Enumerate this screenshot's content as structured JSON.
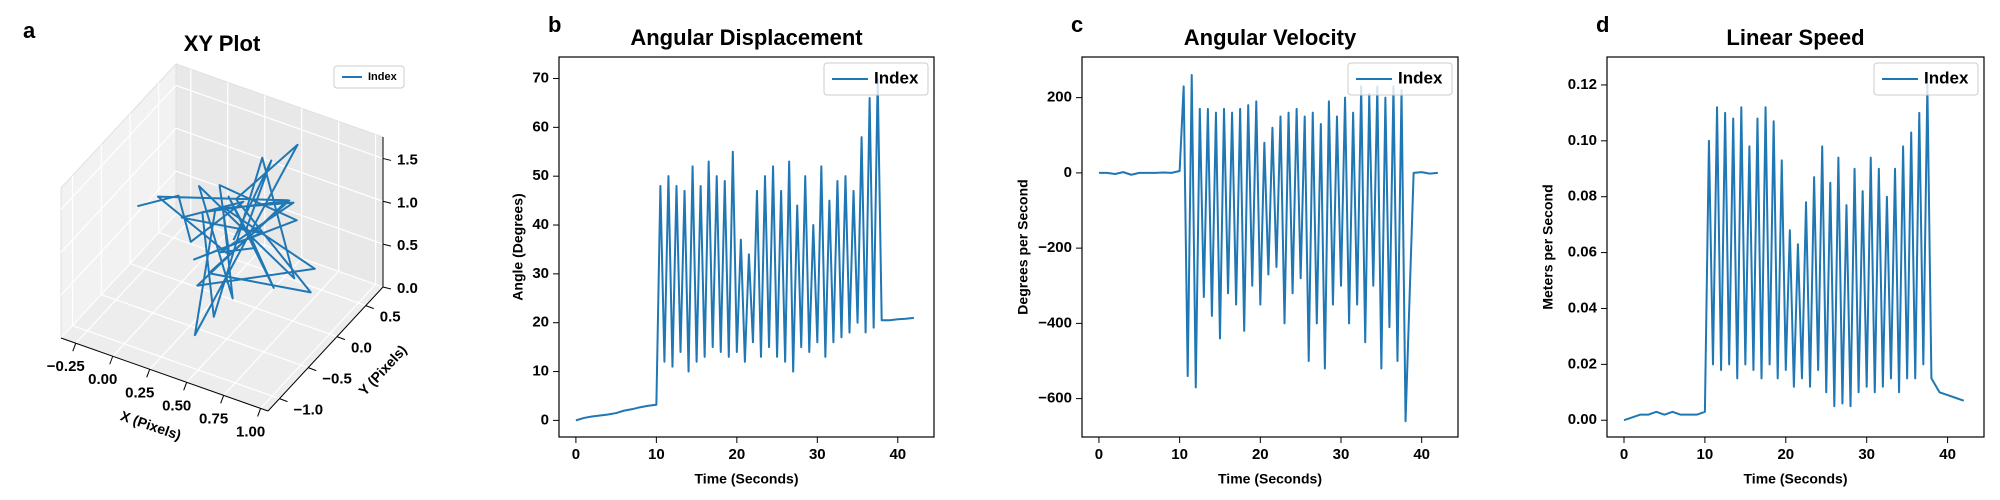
{
  "chart_data": [
    {
      "type": "line3d",
      "panel_label": "a",
      "title": "XY Plot",
      "xlabel": "X (Pixels)",
      "ylabel": "Y (Pixels)",
      "legend": "upper right",
      "xlim": [
        -0.35,
        1.05
      ],
      "ylim": [
        -1.2,
        0.8
      ],
      "zlim": [
        0,
        1.75
      ],
      "xticks": [
        {
          "value": -0.25,
          "label": "−0.25"
        },
        {
          "value": 0,
          "label": "0.00"
        },
        0.25,
        {
          "value": 0.5,
          "label": "0.50"
        },
        0.75,
        {
          "value": 1,
          "label": "1.00"
        }
      ],
      "yticks": [
        {
          "value": -1,
          "label": "−1.0"
        },
        {
          "value": -0.5,
          "label": "−0.5"
        },
        {
          "value": 0,
          "label": "0.0"
        },
        0.5
      ],
      "zticks": [
        {
          "value": 0,
          "label": "0.0"
        },
        0.5,
        {
          "value": 1,
          "label": "1.0"
        },
        1.5
      ],
      "series": [
        {
          "name": "Index",
          "color": "#1f77b4",
          "x": [
            -0.3,
            -0.1,
            0.1,
            0.3,
            0.0,
            0.5,
            0.2,
            0.7,
            0.1,
            0.4,
            -0.2,
            0.6,
            0.3,
            0.9,
            0.2,
            0.5,
            0.0,
            0.8,
            0.35,
            0.45,
            0.1,
            0.65,
            0.3,
            0.95,
            0.25,
            0.55,
            0.4,
            0.15,
            0.6,
            0.3,
            0.5,
            0.2,
            0.7,
            0.4,
            0.45,
            0.35
          ],
          "y": [
            0.0,
            0.2,
            -0.1,
            0.3,
            0.0,
            0.1,
            -0.3,
            0.2,
            0.4,
            -0.2,
            0.1,
            0.3,
            -0.5,
            0.0,
            0.2,
            -0.4,
            0.3,
            -0.1,
            0.5,
            -0.6,
            0.1,
            0.2,
            -0.3,
            -0.2,
            0.3,
            0.6,
            -0.8,
            0.2,
            0.4,
            -0.1,
            0.0,
            0.3,
            -0.2,
            0.1,
            0.4,
            0.0
          ],
          "z": [
            0.7,
            0.8,
            0.6,
            0.9,
            0.75,
            0.8,
            0.6,
            1.0,
            0.9,
            0.7,
            0.8,
            1.1,
            0.5,
            0.7,
            0.85,
            0.4,
            0.9,
            0.6,
            1.3,
            0.3,
            0.8,
            1.2,
            0.5,
            0.6,
            0.9,
            1.5,
            0.2,
            0.8,
            1.0,
            0.6,
            0.7,
            0.9,
            0.5,
            0.8,
            1.4,
            0.7
          ]
        }
      ]
    },
    {
      "type": "line",
      "panel_label": "b",
      "title": "Angular Displacement",
      "xlabel": "Time (Seconds)",
      "ylabel": "Angle (Degrees)",
      "legend": "upper right",
      "xlim": [
        -2.1,
        44.5
      ],
      "ylim": [
        -3.4,
        74.4
      ],
      "xticks": [
        0,
        10,
        20,
        30,
        40
      ],
      "yticks": [
        0,
        10,
        20,
        30,
        40,
        50,
        60,
        70
      ],
      "x": [
        0,
        1,
        2,
        3,
        4,
        5,
        6,
        7,
        8,
        9,
        10,
        10.5,
        11,
        11.5,
        12,
        12.5,
        13,
        13.5,
        14,
        14.5,
        15,
        15.5,
        16,
        16.5,
        17,
        17.5,
        18,
        18.5,
        19,
        19.5,
        20,
        20.5,
        21,
        21.5,
        22,
        22.5,
        23,
        23.5,
        24,
        24.5,
        25,
        25.5,
        26,
        26.5,
        27,
        27.5,
        28,
        28.5,
        29,
        29.5,
        30,
        30.5,
        31,
        31.5,
        32,
        32.5,
        33,
        33.5,
        34,
        34.5,
        35,
        35.5,
        36,
        36.5,
        37,
        37.5,
        38,
        39,
        40,
        41,
        42
      ],
      "series": [
        {
          "name": "Index",
          "color": "#1f77b4",
          "values": [
            0,
            0.5,
            0.8,
            1,
            1.2,
            1.5,
            2,
            2.3,
            2.7,
            3.0,
            3.2,
            48,
            12,
            50,
            11,
            48,
            14,
            47,
            10,
            52,
            12,
            48,
            13,
            53,
            15,
            50,
            14,
            49,
            13,
            55,
            14,
            37,
            12,
            34,
            16,
            47,
            13,
            50,
            15,
            52,
            13,
            47,
            12,
            53,
            10,
            44,
            15,
            50,
            14,
            40,
            16,
            52,
            13,
            45,
            16,
            49,
            17,
            50,
            18,
            47,
            20,
            58,
            18,
            66,
            19,
            70,
            20.5,
            20.5,
            20.7,
            20.8,
            21
          ]
        }
      ]
    },
    {
      "type": "line",
      "panel_label": "c",
      "title": "Angular Velocity",
      "xlabel": "Time (Seconds)",
      "ylabel": "Degrees per Second",
      "legend": "upper right",
      "xlim": [
        -2.1,
        44.5
      ],
      "ylim": [
        -702,
        308
      ],
      "xticks": [
        0,
        10,
        20,
        30,
        40
      ],
      "yticks": [
        {
          "value": -600,
          "label": "−600"
        },
        {
          "value": -400,
          "label": "−400"
        },
        {
          "value": -200,
          "label": "−200"
        },
        0,
        200
      ],
      "x": [
        0,
        1,
        2,
        3,
        4,
        5,
        6,
        7,
        8,
        9,
        10,
        10.5,
        11,
        11.5,
        12,
        12.5,
        13,
        13.5,
        14,
        14.5,
        15,
        15.5,
        16,
        16.5,
        17,
        17.5,
        18,
        18.5,
        19,
        19.5,
        20,
        20.5,
        21,
        21.5,
        22,
        22.5,
        23,
        23.5,
        24,
        24.5,
        25,
        25.5,
        26,
        26.5,
        27,
        27.5,
        28,
        28.5,
        29,
        29.5,
        30,
        30.5,
        31,
        31.5,
        32,
        32.5,
        33,
        33.5,
        34,
        34.5,
        35,
        35.5,
        36,
        36.5,
        37,
        37.5,
        38,
        39,
        40,
        41,
        42
      ],
      "series": [
        {
          "name": "Index",
          "color": "#1f77b4",
          "values": [
            0,
            0,
            -3,
            2,
            -5,
            0,
            0,
            0,
            1,
            0,
            5,
            230,
            -540,
            260,
            -570,
            170,
            -330,
            170,
            -380,
            160,
            -440,
            170,
            -320,
            160,
            -350,
            170,
            -420,
            180,
            -300,
            190,
            -350,
            80,
            -270,
            120,
            -250,
            150,
            -400,
            160,
            -320,
            170,
            -280,
            150,
            -500,
            160,
            -400,
            130,
            -520,
            190,
            -350,
            150,
            -300,
            200,
            -400,
            160,
            -350,
            230,
            -450,
            210,
            -300,
            230,
            -520,
            200,
            -410,
            230,
            -500,
            220,
            -660,
            0,
            2,
            -2,
            0
          ]
        }
      ]
    },
    {
      "type": "line",
      "panel_label": "d",
      "title": "Linear Speed",
      "xlabel": "Time (Seconds)",
      "ylabel": "Meters per Second",
      "legend": "upper right",
      "xlim": [
        -2.1,
        44.5
      ],
      "ylim": [
        -0.006,
        0.13
      ],
      "xticks": [
        0,
        10,
        20,
        30,
        40
      ],
      "yticks": [
        {
          "value": 0,
          "label": "0.00"
        },
        {
          "value": 0.02,
          "label": "0.02"
        },
        {
          "value": 0.04,
          "label": "0.04"
        },
        {
          "value": 0.06,
          "label": "0.06"
        },
        {
          "value": 0.08,
          "label": "0.08"
        },
        {
          "value": 0.1,
          "label": "0.10"
        },
        {
          "value": 0.12,
          "label": "0.12"
        }
      ],
      "x": [
        0,
        1,
        2,
        3,
        4,
        5,
        6,
        7,
        8,
        9,
        10,
        10.5,
        11,
        11.5,
        12,
        12.5,
        13,
        13.5,
        14,
        14.5,
        15,
        15.5,
        16,
        16.5,
        17,
        17.5,
        18,
        18.5,
        19,
        19.5,
        20,
        20.5,
        21,
        21.5,
        22,
        22.5,
        23,
        23.5,
        24,
        24.5,
        25,
        25.5,
        26,
        26.5,
        27,
        27.5,
        28,
        28.5,
        29,
        29.5,
        30,
        30.5,
        31,
        31.5,
        32,
        32.5,
        33,
        33.5,
        34,
        34.5,
        35,
        35.5,
        36,
        36.5,
        37,
        37.5,
        38,
        39,
        40,
        41,
        42
      ],
      "series": [
        {
          "name": "Index",
          "color": "#1f77b4",
          "values": [
            0,
            0.001,
            0.002,
            0.002,
            0.003,
            0.002,
            0.003,
            0.002,
            0.002,
            0.002,
            0.003,
            0.1,
            0.02,
            0.112,
            0.018,
            0.11,
            0.02,
            0.108,
            0.015,
            0.112,
            0.02,
            0.098,
            0.018,
            0.108,
            0.015,
            0.112,
            0.02,
            0.107,
            0.015,
            0.093,
            0.018,
            0.068,
            0.012,
            0.063,
            0.015,
            0.078,
            0.012,
            0.087,
            0.018,
            0.098,
            0.01,
            0.085,
            0.005,
            0.094,
            0.006,
            0.077,
            0.005,
            0.09,
            0.01,
            0.082,
            0.012,
            0.094,
            0.01,
            0.09,
            0.012,
            0.08,
            0.015,
            0.09,
            0.01,
            0.098,
            0.015,
            0.103,
            0.015,
            0.11,
            0.02,
            0.12,
            0.015,
            0.01,
            0.009,
            0.008,
            0.007
          ]
        }
      ]
    }
  ]
}
